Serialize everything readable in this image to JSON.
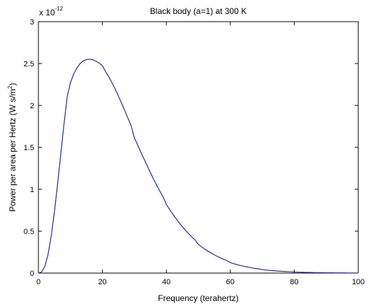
{
  "chart_data": {
    "type": "line",
    "title": "Black body (a=1) at 300 K",
    "xlabel": "Frequency (terahertz)",
    "ylabel_parts": [
      "Power per area per Hertz (W s/m",
      "2",
      ")"
    ],
    "multiplier_text": "x 10",
    "multiplier_exponent": "-12",
    "xlim": [
      0,
      100
    ],
    "ylim": [
      0,
      3
    ],
    "xticks": [
      0,
      20,
      40,
      60,
      80,
      100
    ],
    "xtick_labels": [
      "0",
      "20",
      "40",
      "60",
      "80",
      "100"
    ],
    "yticks": [
      0,
      0.5,
      1,
      1.5,
      2,
      2.5,
      3
    ],
    "ytick_labels": [
      "0",
      "0.5",
      "1",
      "1.5",
      "2",
      "2.5",
      "3"
    ],
    "grid": false,
    "line_color": "#2a2a8c",
    "series": [
      {
        "x": [
          0,
          1,
          2,
          3,
          4,
          5,
          6,
          7,
          8,
          9,
          10,
          11,
          12,
          13,
          14,
          15,
          16,
          17,
          18,
          19,
          20,
          21,
          22,
          23,
          24,
          25,
          26,
          27,
          28,
          29,
          30,
          31,
          32,
          33,
          34,
          35,
          36,
          37,
          38,
          39,
          40,
          41,
          42,
          43,
          44,
          45,
          46,
          47,
          48,
          49,
          50,
          51,
          52,
          53,
          54,
          55,
          56,
          57,
          58,
          59,
          60,
          61,
          62,
          63,
          64,
          65,
          66,
          67,
          68,
          69,
          70,
          71,
          72,
          73,
          74,
          75,
          76,
          77,
          78,
          79,
          80,
          81,
          82,
          83,
          84,
          85,
          86,
          87,
          88,
          89,
          90,
          91,
          92,
          93,
          94,
          95,
          96,
          97,
          98,
          99,
          100
        ],
        "y": [
          0,
          0.0135,
          0.0786,
          0.219,
          0.44,
          0.727,
          1.062,
          1.421,
          1.779,
          2.102,
          2.269,
          2.374,
          2.446,
          2.499,
          2.532,
          2.547,
          2.551,
          2.546,
          2.528,
          2.506,
          2.474,
          2.404,
          2.342,
          2.272,
          2.196,
          2.114,
          2.028,
          1.939,
          1.848,
          1.756,
          1.612,
          1.53,
          1.446,
          1.362,
          1.28,
          1.2,
          1.122,
          1.047,
          0.975,
          0.907,
          0.819,
          0.76,
          0.704,
          0.651,
          0.601,
          0.554,
          0.51,
          0.469,
          0.43,
          0.394,
          0.343,
          0.314,
          0.287,
          0.262,
          0.239,
          0.218,
          0.198,
          0.18,
          0.163,
          0.148,
          0.125,
          0.113,
          0.102,
          0.092,
          0.083,
          0.075,
          0.067,
          0.06,
          0.054,
          0.049,
          0.042,
          0.037,
          0.033,
          0.03,
          0.027,
          0.024,
          0.021,
          0.019,
          0.017,
          0.015,
          0.013,
          0.011,
          0.01,
          0.009,
          0.008,
          0.007,
          0.006,
          0.0055,
          0.0049,
          0.0043,
          0.0037,
          0.0033,
          0.0029,
          0.0026,
          0.0023,
          0.002,
          0.0018,
          0.0016,
          0.0014,
          0.0012,
          0.0011
        ]
      }
    ]
  }
}
